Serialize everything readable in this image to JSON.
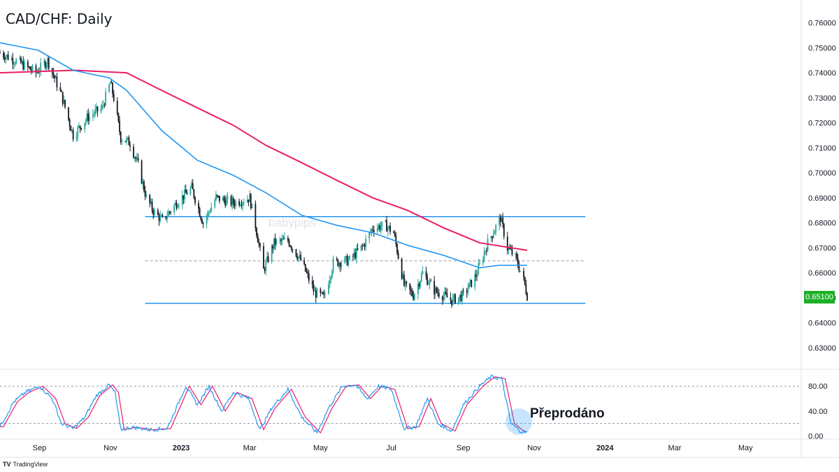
{
  "title": "CAD/CHF: Daily",
  "last_price": "0.65100",
  "annotation": "Přeprodáno",
  "watermark": "babypips",
  "brand": {
    "mark": "TV",
    "name": "TradingView"
  },
  "colors": {
    "up": "#26a69a",
    "down": "#131722",
    "ma_fast": "#2196f3",
    "ma_slow": "#e91e63",
    "levels": "#2196f3",
    "stoch_k": "#2196f3",
    "stoch_d": "#e91e63",
    "price_tag": "#1cb025"
  },
  "chart_data": [
    {
      "type": "candlestick",
      "title": "CAD/CHF: Daily",
      "ylim": [
        0.622,
        0.768
      ],
      "y_ticks": [
        "0.76000",
        "0.75000",
        "0.74000",
        "0.73000",
        "0.72000",
        "0.71000",
        "0.70000",
        "0.69000",
        "0.68000",
        "0.67000",
        "0.66000",
        "0.65000",
        "0.64000",
        "0.63000"
      ],
      "x_ticks": [
        {
          "label": "Sep",
          "date": "2022-09-01"
        },
        {
          "label": "Nov",
          "date": "2022-11-01"
        },
        {
          "label": "2023",
          "date": "2023-01-01",
          "bold": true
        },
        {
          "label": "Mar",
          "date": "2023-03-01"
        },
        {
          "label": "May",
          "date": "2023-05-01"
        },
        {
          "label": "Jul",
          "date": "2023-07-01"
        },
        {
          "label": "Sep",
          "date": "2023-09-01"
        },
        {
          "label": "Nov",
          "date": "2023-11-01"
        },
        {
          "label": "2024",
          "date": "2024-01-01",
          "bold": true
        },
        {
          "label": "Mar",
          "date": "2024-03-01"
        },
        {
          "label": "May",
          "date": "2024-05-01"
        }
      ],
      "x_range": [
        "2022-07-29",
        "2024-06-18"
      ],
      "price_path": [
        [
          "2022-07-29",
          0.748
        ],
        [
          "2022-08-15",
          0.744
        ],
        [
          "2022-08-29",
          0.74
        ],
        [
          "2022-09-08",
          0.745
        ],
        [
          "2022-09-20",
          0.731
        ],
        [
          "2022-09-30",
          0.715
        ],
        [
          "2022-10-12",
          0.722
        ],
        [
          "2022-10-25",
          0.726
        ],
        [
          "2022-11-01",
          0.736
        ],
        [
          "2022-11-04",
          0.73
        ],
        [
          "2022-11-10",
          0.714
        ],
        [
          "2022-11-18",
          0.712
        ],
        [
          "2022-11-25",
          0.703
        ],
        [
          "2022-12-02",
          0.69
        ],
        [
          "2022-12-09",
          0.684
        ],
        [
          "2022-12-16",
          0.681
        ],
        [
          "2022-12-28",
          0.688
        ],
        [
          "2023-01-10",
          0.694
        ],
        [
          "2023-01-20",
          0.68
        ],
        [
          "2023-01-31",
          0.69
        ],
        [
          "2023-02-15",
          0.688
        ],
        [
          "2023-03-01",
          0.69
        ],
        [
          "2023-03-06",
          0.679
        ],
        [
          "2023-03-13",
          0.661
        ],
        [
          "2023-03-22",
          0.672
        ],
        [
          "2023-04-03",
          0.673
        ],
        [
          "2023-04-14",
          0.665
        ],
        [
          "2023-04-26",
          0.652
        ],
        [
          "2023-05-04",
          0.65
        ],
        [
          "2023-05-12",
          0.664
        ],
        [
          "2023-05-26",
          0.665
        ],
        [
          "2023-06-07",
          0.671
        ],
        [
          "2023-06-15",
          0.678
        ],
        [
          "2023-06-26",
          0.679
        ],
        [
          "2023-07-03",
          0.676
        ],
        [
          "2023-07-12",
          0.655
        ],
        [
          "2023-07-20",
          0.651
        ],
        [
          "2023-07-28",
          0.66
        ],
        [
          "2023-08-07",
          0.653
        ],
        [
          "2023-08-22",
          0.649
        ],
        [
          "2023-09-01",
          0.651
        ],
        [
          "2023-09-12",
          0.659
        ],
        [
          "2023-09-22",
          0.672
        ],
        [
          "2023-10-03",
          0.682
        ],
        [
          "2023-10-09",
          0.67
        ],
        [
          "2023-10-16",
          0.666
        ],
        [
          "2023-10-23",
          0.657
        ],
        [
          "2023-10-26",
          0.651
        ]
      ],
      "ma_fast": [
        [
          "2022-07-29",
          0.752
        ],
        [
          "2022-08-31",
          0.749
        ],
        [
          "2022-09-30",
          0.741
        ],
        [
          "2022-10-31",
          0.738
        ],
        [
          "2022-11-15",
          0.733
        ],
        [
          "2022-12-15",
          0.717
        ],
        [
          "2023-01-15",
          0.705
        ],
        [
          "2023-02-15",
          0.699
        ],
        [
          "2023-03-15",
          0.692
        ],
        [
          "2023-04-15",
          0.683
        ],
        [
          "2023-05-15",
          0.679
        ],
        [
          "2023-06-15",
          0.676
        ],
        [
          "2023-07-15",
          0.671
        ],
        [
          "2023-08-15",
          0.667
        ],
        [
          "2023-09-15",
          0.662
        ],
        [
          "2023-10-01",
          0.663
        ],
        [
          "2023-10-26",
          0.663
        ]
      ],
      "ma_slow": [
        [
          "2022-07-29",
          0.74
        ],
        [
          "2022-10-01",
          0.741
        ],
        [
          "2022-11-15",
          0.74
        ],
        [
          "2022-12-15",
          0.733
        ],
        [
          "2023-01-15",
          0.726
        ],
        [
          "2023-02-15",
          0.719
        ],
        [
          "2023-03-15",
          0.711
        ],
        [
          "2023-04-15",
          0.704
        ],
        [
          "2023-05-15",
          0.697
        ],
        [
          "2023-06-15",
          0.69
        ],
        [
          "2023-07-15",
          0.685
        ],
        [
          "2023-08-15",
          0.678
        ],
        [
          "2023-09-15",
          0.672
        ],
        [
          "2023-10-26",
          0.669
        ]
      ],
      "levels": [
        {
          "value": 0.6825,
          "from": "2022-12-01",
          "to": "2023-12-15",
          "style": "solid"
        },
        {
          "value": 0.6648,
          "from": "2022-12-01",
          "to": "2023-12-15",
          "style": "dashed"
        },
        {
          "value": 0.6478,
          "from": "2022-12-01",
          "to": "2023-12-15",
          "style": "solid"
        }
      ],
      "last_value": 0.651
    },
    {
      "type": "line",
      "series": [
        {
          "values_kind": "stochastic %K"
        },
        {
          "values_kind": "stochastic %D"
        }
      ],
      "ylim": [
        -4,
        105
      ],
      "y_ticks": [
        "80.00",
        "40.00",
        "0.00"
      ],
      "bands": [
        80,
        20
      ],
      "stoch_path": [
        [
          "2022-07-29",
          15
        ],
        [
          "2022-08-10",
          55
        ],
        [
          "2022-08-20",
          70
        ],
        [
          "2022-09-01",
          80
        ],
        [
          "2022-09-12",
          60
        ],
        [
          "2022-09-20",
          20
        ],
        [
          "2022-09-30",
          12
        ],
        [
          "2022-10-10",
          30
        ],
        [
          "2022-10-20",
          65
        ],
        [
          "2022-10-31",
          82
        ],
        [
          "2022-11-05",
          70
        ],
        [
          "2022-11-10",
          10
        ],
        [
          "2022-11-20",
          14
        ],
        [
          "2022-12-05",
          10
        ],
        [
          "2022-12-20",
          12
        ],
        [
          "2023-01-05",
          80
        ],
        [
          "2023-01-15",
          50
        ],
        [
          "2023-01-25",
          80
        ],
        [
          "2023-02-05",
          40
        ],
        [
          "2023-02-15",
          70
        ],
        [
          "2023-02-28",
          60
        ],
        [
          "2023-03-10",
          10
        ],
        [
          "2023-03-20",
          45
        ],
        [
          "2023-04-03",
          75
        ],
        [
          "2023-04-15",
          30
        ],
        [
          "2023-04-28",
          5
        ],
        [
          "2023-05-08",
          45
        ],
        [
          "2023-05-20",
          80
        ],
        [
          "2023-05-31",
          82
        ],
        [
          "2023-06-10",
          60
        ],
        [
          "2023-06-20",
          80
        ],
        [
          "2023-07-01",
          75
        ],
        [
          "2023-07-12",
          12
        ],
        [
          "2023-07-22",
          15
        ],
        [
          "2023-08-01",
          60
        ],
        [
          "2023-08-10",
          20
        ],
        [
          "2023-08-22",
          8
        ],
        [
          "2023-09-01",
          50
        ],
        [
          "2023-09-15",
          80
        ],
        [
          "2023-09-25",
          95
        ],
        [
          "2023-10-04",
          92
        ],
        [
          "2023-10-12",
          20
        ],
        [
          "2023-10-20",
          8
        ],
        [
          "2023-10-26",
          5
        ]
      ]
    }
  ]
}
